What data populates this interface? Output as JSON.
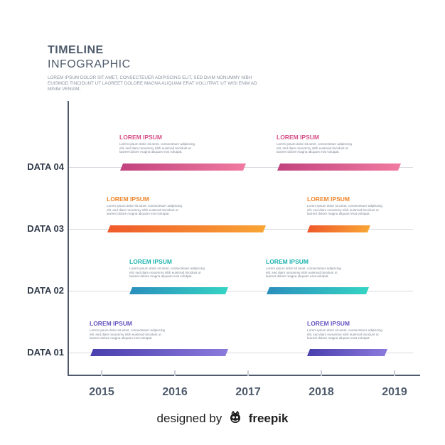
{
  "header": {
    "title": "TIMELINE",
    "subtitle": "INFOGRAPHIC",
    "intro": "LOREM IPSUM DOLOR SIT AMET, CONSECTEUER ADIPISCING ELIT, SED DIAM NONUMMY NIBH EUISMOD TINCIDUNT UT LAOREET DOLORE MAGNA ALIQUAM ERAT VOLUTPAT. UT WISI ENIM AD MINIM VENIAM,"
  },
  "axis": {
    "years": [
      "2015",
      "2016",
      "2017",
      "2018",
      "2019"
    ],
    "rows": [
      "DATA 04",
      "DATA 03",
      "DATA 02",
      "DATA 01"
    ]
  },
  "card": {
    "title": "LOREM IPSUM",
    "text": "Lorem ipsum dolor sit amet, consectetuer adipiscing elit, sed diam nonummy nibh euismod tincidunt ut laoreet dolore magna aliquam erat volutpat."
  },
  "colors": {
    "data04": [
      "#c2437f",
      "#f07aa0"
    ],
    "data03": [
      "#ef5a2a",
      "#f9a535"
    ],
    "data02": [
      "#2a8fbd",
      "#35d3c3"
    ],
    "data01": [
      "#4a3fae",
      "#8b79dc"
    ],
    "title04": "#d64f86",
    "title03": "#f0852b",
    "title02": "#1eb4b0",
    "title01": "#6653c0"
  },
  "credit": {
    "prefix": "designed by",
    "brand": "freepik"
  }
}
